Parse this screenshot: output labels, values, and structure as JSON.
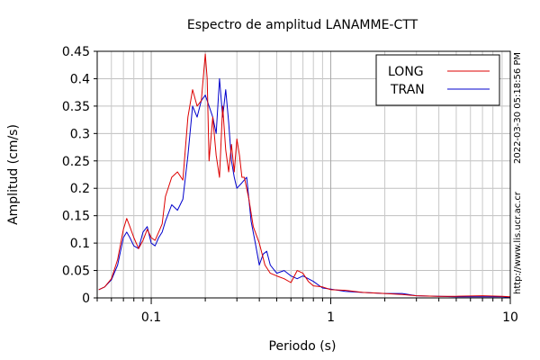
{
  "chart_data": {
    "type": "line",
    "title": "Espectro de amplitud LANAMME-CTT",
    "xlabel": "Periodo (s)",
    "ylabel": "Amplitud (cm/s)",
    "x_scale": "log",
    "xlim": [
      0.05,
      10
    ],
    "ylim": [
      0,
      0.45
    ],
    "x_major_ticks": [
      0.1,
      1,
      10
    ],
    "x_tick_labels": [
      "0.1",
      "1",
      "10"
    ],
    "y_ticks": [
      0,
      0.05,
      0.1,
      0.15,
      0.2,
      0.25,
      0.3,
      0.35,
      0.4,
      0.45
    ],
    "y_tick_labels": [
      "0",
      "0.05",
      "0.1",
      "0.15",
      "0.2",
      "0.25",
      "0.3",
      "0.35",
      "0.4",
      "0.45"
    ],
    "grid": true,
    "legend_position": "top-right",
    "side_annotations": [
      "2022-03-30 05:18:56 PM",
      "http://www.lis.ucr.ac.cr"
    ],
    "colors": {
      "LONG": "#dd0000",
      "TRAN": "#0000cc"
    },
    "series": [
      {
        "name": "LONG",
        "x": [
          0.051,
          0.055,
          0.06,
          0.065,
          0.07,
          0.073,
          0.076,
          0.08,
          0.085,
          0.09,
          0.095,
          0.1,
          0.105,
          0.11,
          0.115,
          0.12,
          0.13,
          0.14,
          0.15,
          0.16,
          0.17,
          0.18,
          0.19,
          0.2,
          0.205,
          0.21,
          0.22,
          0.23,
          0.24,
          0.25,
          0.26,
          0.27,
          0.28,
          0.29,
          0.3,
          0.31,
          0.32,
          0.33,
          0.35,
          0.37,
          0.4,
          0.43,
          0.46,
          0.5,
          0.55,
          0.6,
          0.65,
          0.7,
          0.75,
          0.8,
          0.9,
          1.0,
          1.2,
          1.5,
          2.0,
          2.5,
          3.0,
          4.0,
          5.0,
          7.0,
          9.0,
          10.0
        ],
        "y": [
          0.015,
          0.02,
          0.035,
          0.07,
          0.125,
          0.145,
          0.13,
          0.11,
          0.09,
          0.105,
          0.125,
          0.11,
          0.105,
          0.12,
          0.135,
          0.185,
          0.22,
          0.23,
          0.215,
          0.33,
          0.38,
          0.35,
          0.36,
          0.445,
          0.4,
          0.25,
          0.33,
          0.26,
          0.22,
          0.35,
          0.27,
          0.23,
          0.28,
          0.23,
          0.29,
          0.26,
          0.22,
          0.22,
          0.18,
          0.13,
          0.1,
          0.06,
          0.045,
          0.04,
          0.035,
          0.028,
          0.05,
          0.045,
          0.03,
          0.022,
          0.02,
          0.015,
          0.014,
          0.01,
          0.008,
          0.006,
          0.004,
          0.003,
          0.003,
          0.004,
          0.003,
          0.002
        ]
      },
      {
        "name": "TRAN",
        "x": [
          0.051,
          0.055,
          0.06,
          0.065,
          0.07,
          0.073,
          0.076,
          0.08,
          0.085,
          0.09,
          0.095,
          0.1,
          0.105,
          0.11,
          0.115,
          0.12,
          0.13,
          0.14,
          0.15,
          0.16,
          0.17,
          0.18,
          0.19,
          0.2,
          0.21,
          0.22,
          0.23,
          0.24,
          0.25,
          0.26,
          0.27,
          0.28,
          0.29,
          0.3,
          0.32,
          0.34,
          0.36,
          0.38,
          0.4,
          0.42,
          0.44,
          0.46,
          0.5,
          0.55,
          0.6,
          0.65,
          0.7,
          0.75,
          0.8,
          0.9,
          1.0,
          1.2,
          1.5,
          2.0,
          2.5,
          3.0,
          4.0,
          5.0,
          7.0,
          9.0,
          10.0
        ],
        "y": [
          0.015,
          0.02,
          0.033,
          0.06,
          0.11,
          0.12,
          0.11,
          0.095,
          0.09,
          0.12,
          0.13,
          0.1,
          0.095,
          0.11,
          0.12,
          0.14,
          0.17,
          0.16,
          0.18,
          0.26,
          0.35,
          0.33,
          0.36,
          0.37,
          0.35,
          0.33,
          0.3,
          0.4,
          0.33,
          0.38,
          0.32,
          0.25,
          0.22,
          0.2,
          0.21,
          0.22,
          0.14,
          0.1,
          0.06,
          0.08,
          0.085,
          0.06,
          0.045,
          0.05,
          0.04,
          0.035,
          0.04,
          0.035,
          0.03,
          0.018,
          0.016,
          0.012,
          0.01,
          0.008,
          0.008,
          0.004,
          0.003,
          0.002,
          0.002,
          0.002,
          0.001
        ]
      }
    ]
  }
}
